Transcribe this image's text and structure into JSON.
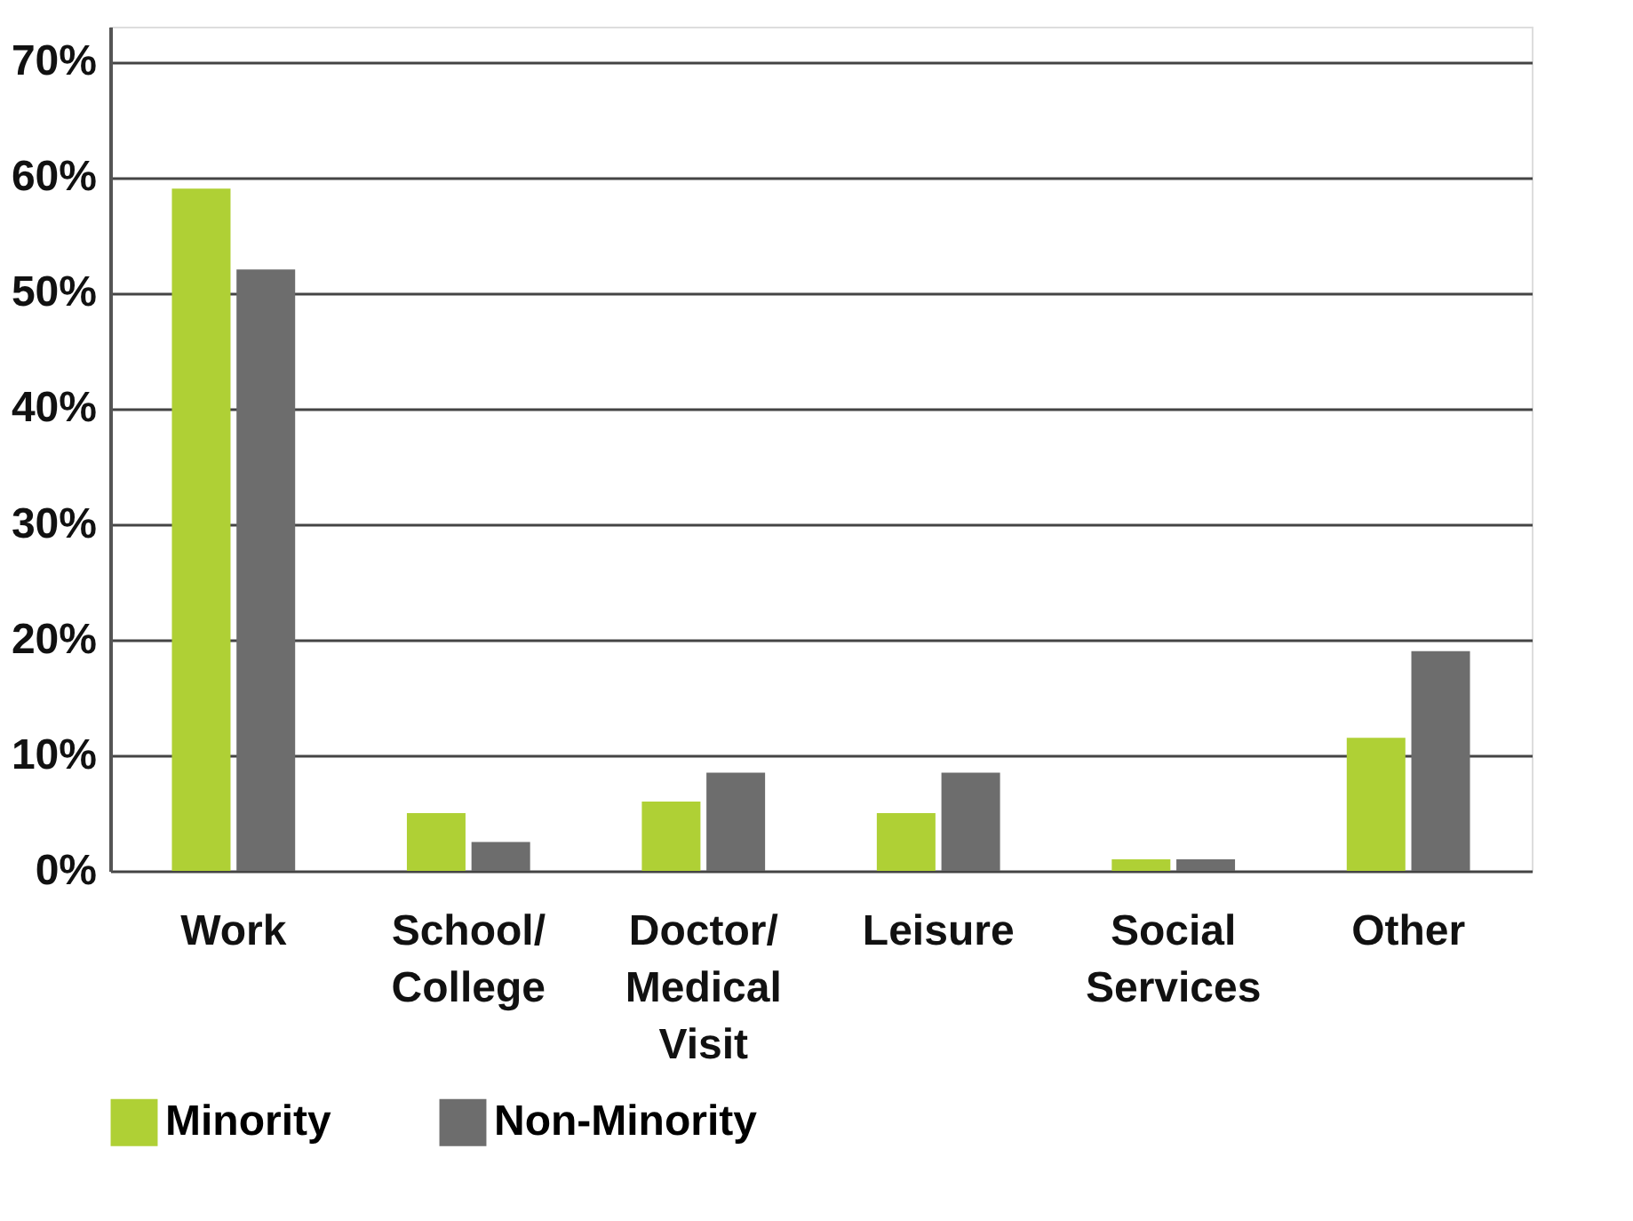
{
  "chart_data": {
    "type": "bar",
    "categories": [
      "Work",
      "School/\nCollege",
      "Doctor/\nMedical\nVisit",
      "Leisure",
      "Social\nServices",
      "Other"
    ],
    "series": [
      {
        "name": "Minority",
        "color": "#afd035",
        "values": [
          59,
          5,
          6,
          5,
          1,
          11.5
        ]
      },
      {
        "name": "Non-Minority",
        "color": "#6d6d6d",
        "values": [
          52,
          2.5,
          8.5,
          8.5,
          1,
          19
        ]
      }
    ],
    "ylim": [
      0,
      73
    ],
    "yticks": [
      {
        "value": 0,
        "label": "0%"
      },
      {
        "value": 10,
        "label": "10%"
      },
      {
        "value": 20,
        "label": "20%"
      },
      {
        "value": 30,
        "label": "30%"
      },
      {
        "value": 40,
        "label": "40%"
      },
      {
        "value": 50,
        "label": "50%"
      },
      {
        "value": 60,
        "label": "60%"
      },
      {
        "value": 70,
        "label": "70%"
      }
    ],
    "grid": "y",
    "legend": "bottom"
  }
}
